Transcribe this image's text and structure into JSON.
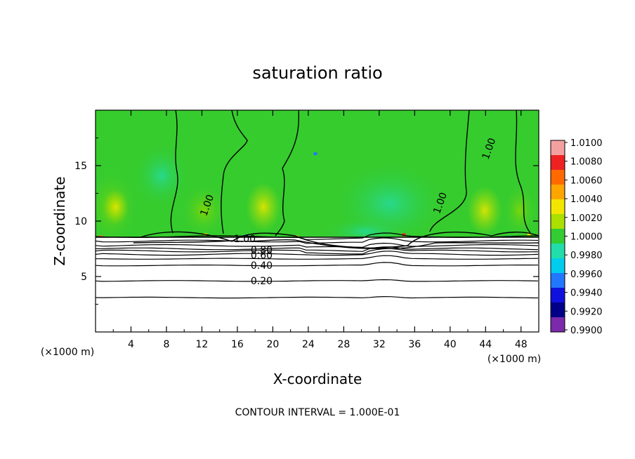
{
  "chart_data": {
    "type": "heatmap",
    "title": "saturation ratio",
    "xlabel": "X-coordinate",
    "ylabel": "Z-coordinate",
    "x_unit_left": "(×1000 m)",
    "x_unit_right": "(×1000 m)",
    "xlim": [
      0,
      50
    ],
    "ylim": [
      0,
      20
    ],
    "x_ticks": [
      4,
      8,
      12,
      16,
      20,
      24,
      28,
      32,
      36,
      40,
      44,
      48
    ],
    "y_ticks": [
      5,
      10,
      15
    ],
    "footer": "CONTOUR INTERVAL = 1.000E-01",
    "colorbar": {
      "labels": [
        "1.0100",
        "1.0080",
        "1.0060",
        "1.0040",
        "1.0020",
        "1.0000",
        "0.9980",
        "0.9960",
        "0.9940",
        "0.9920",
        "0.9900"
      ],
      "colors": [
        "#f4a0a0",
        "#ee2222",
        "#ff6a00",
        "#ffa500",
        "#f2e600",
        "#aadf00",
        "#33cc33",
        "#22ddaa",
        "#00ccee",
        "#2277ff",
        "#1111dd",
        "#000088",
        "#7a2aaa"
      ]
    },
    "contour_labels": [
      {
        "text": "1.00",
        "x": 15.6,
        "z": 8.1
      },
      {
        "text": "1.00",
        "x": 12.5,
        "z": 10.4
      },
      {
        "text": "1.00",
        "x": 38.8,
        "z": 10.6
      },
      {
        "text": "1.00",
        "x": 44.3,
        "z": 15.5
      },
      {
        "text": "0.80",
        "x": 17.5,
        "z": 7.1
      },
      {
        "text": "0.60",
        "x": 17.5,
        "z": 6.6
      },
      {
        "text": "0.40",
        "x": 17.5,
        "z": 5.7
      },
      {
        "text": "0.20",
        "x": 17.5,
        "z": 4.3
      }
    ],
    "contour_levels_z": [
      8.6,
      8.2,
      7.8,
      7.5,
      7.3,
      7.0,
      6.6,
      6.0,
      4.6,
      3.1
    ]
  }
}
